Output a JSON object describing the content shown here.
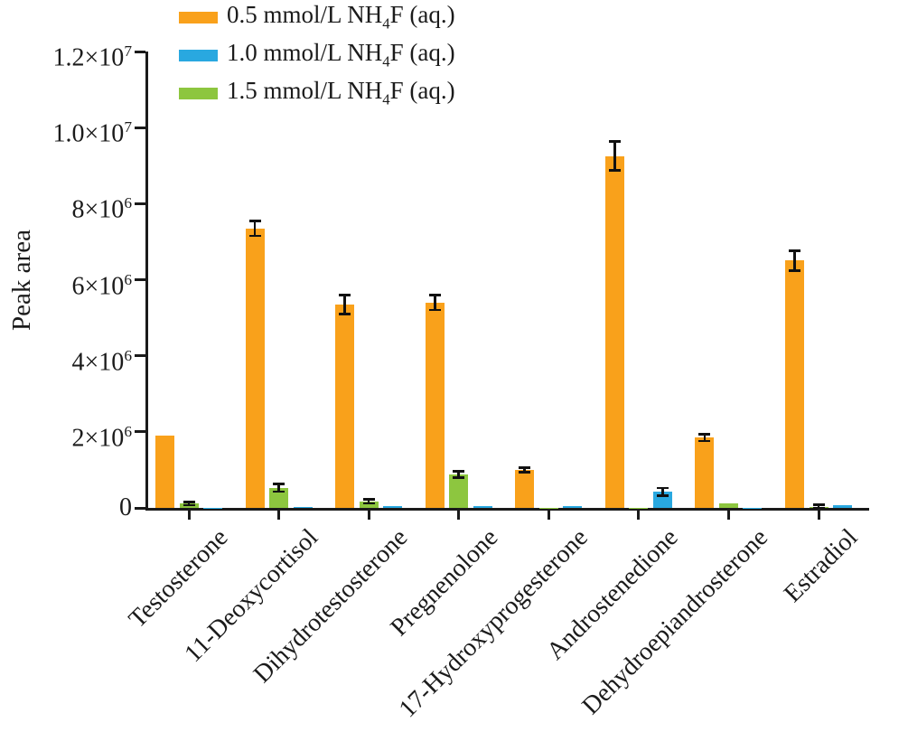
{
  "chart_data": {
    "type": "bar",
    "title": "",
    "xlabel": "",
    "ylabel": "Peak area",
    "ylim": [
      0,
      12000000
    ],
    "grid": false,
    "legend_position": "top-left",
    "error_bar_color": "#111111",
    "categories": [
      "Testosterone",
      "11-Deoxycortisol",
      "Dihydrotestosterone",
      "Pregnenolone",
      "17-Hydroxyprogesterone",
      "Androstenedione",
      "Dehydroepiandrosterone",
      "Estradiol"
    ],
    "yticks": [
      {
        "value": 0,
        "text": "0",
        "sup": ""
      },
      {
        "value": 2000000,
        "text": "2×10",
        "sup": "6"
      },
      {
        "value": 4000000,
        "text": "4×10",
        "sup": "6"
      },
      {
        "value": 6000000,
        "text": "6×10",
        "sup": "6"
      },
      {
        "value": 8000000,
        "text": "8×10",
        "sup": "6"
      },
      {
        "value": 10000000,
        "text": "1.0×10",
        "sup": "7"
      },
      {
        "value": 12000000,
        "text": "1.2×10",
        "sup": "7"
      }
    ],
    "series": [
      {
        "id": "0.5 mmol/L",
        "color": "#F9A11B",
        "legend_pre": "0.5 mmol/L NH",
        "legend_sub": "4",
        "legend_post": "F (aq.)",
        "values": [
          1900000,
          7350000,
          5350000,
          5400000,
          1000000,
          9250000,
          1850000,
          6500000
        ],
        "errors": [
          0,
          200000,
          250000,
          200000,
          60000,
          380000,
          90000,
          260000
        ]
      },
      {
        "id": "1.0 mmol/L",
        "color": "#29A8E0",
        "legend_pre": "1.0 mmol/L NH",
        "legend_sub": "4",
        "legend_post": "F (aq.)",
        "values": [
          10000,
          20000,
          40000,
          50000,
          40000,
          420000,
          10000,
          60000
        ],
        "errors": [
          0,
          0,
          0,
          0,
          0,
          100000,
          0,
          0
        ]
      },
      {
        "id": "1.5 mmol/L",
        "color": "#8DC63F",
        "legend_pre": "1.5 mmol/L NH",
        "legend_sub": "4",
        "legend_post": "F (aq.)",
        "values": [
          110000,
          530000,
          170000,
          880000,
          10000,
          10000,
          130000,
          30000
        ],
        "errors": [
          40000,
          100000,
          50000,
          80000,
          0,
          0,
          0,
          50000
        ]
      }
    ],
    "bar_plot_order": [
      0,
      2,
      1
    ]
  }
}
